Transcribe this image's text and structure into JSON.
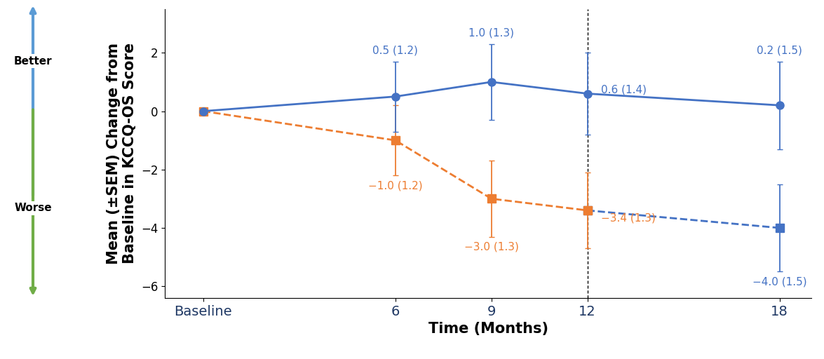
{
  "chart_data": {
    "type": "line",
    "x_label": "Time (Months)",
    "y_label": "Mean (±SEM) Change from\nBaseline in KCCQ-OS Score",
    "annotations": [
      "Better",
      "Worse"
    ],
    "xlim": [
      -1.2,
      19
    ],
    "xticks": [
      {
        "value": 0,
        "label": "Baseline"
      },
      6,
      9,
      12,
      18
    ],
    "ylim": [
      -6.4,
      3.5
    ],
    "yticks": [
      {
        "value": -6,
        "label": "−6"
      },
      {
        "value": -4,
        "label": "−4"
      },
      {
        "value": -2,
        "label": "−2"
      },
      0,
      2
    ],
    "vlines": [
      12
    ],
    "grid": false,
    "data_labels": true,
    "series": [
      {
        "color": "#4472C4",
        "line_style": "dashed",
        "marker": "square",
        "x": [
          12,
          18
        ],
        "values": [
          -3.4,
          -4.0
        ],
        "errors": [
          null,
          1.5
        ],
        "value_labels": [
          null,
          "−4.0 (1.5)"
        ]
      },
      {
        "color": "#ED7D31",
        "line_style": "dashed",
        "marker": "square",
        "x": [
          0,
          6,
          9,
          12
        ],
        "values": [
          0,
          -1.0,
          -3.0,
          -3.4
        ],
        "errors": [
          null,
          1.2,
          1.3,
          1.3
        ],
        "value_labels": [
          null,
          "−1.0 (1.2)",
          "−3.0 (1.3)",
          "−3.4 (1.3)"
        ]
      },
      {
        "color": "#4472C4",
        "line_style": "solid",
        "marker": "circle",
        "x": [
          0,
          6,
          9,
          12,
          18
        ],
        "values": [
          0,
          0.5,
          1.0,
          0.6,
          0.2
        ],
        "errors": [
          null,
          1.2,
          1.3,
          1.4,
          1.5
        ],
        "value_labels": [
          null,
          "0.5 (1.2)",
          "1.0 (1.3)",
          "0.6 (1.4)",
          "0.2 (1.5)"
        ]
      }
    ]
  }
}
